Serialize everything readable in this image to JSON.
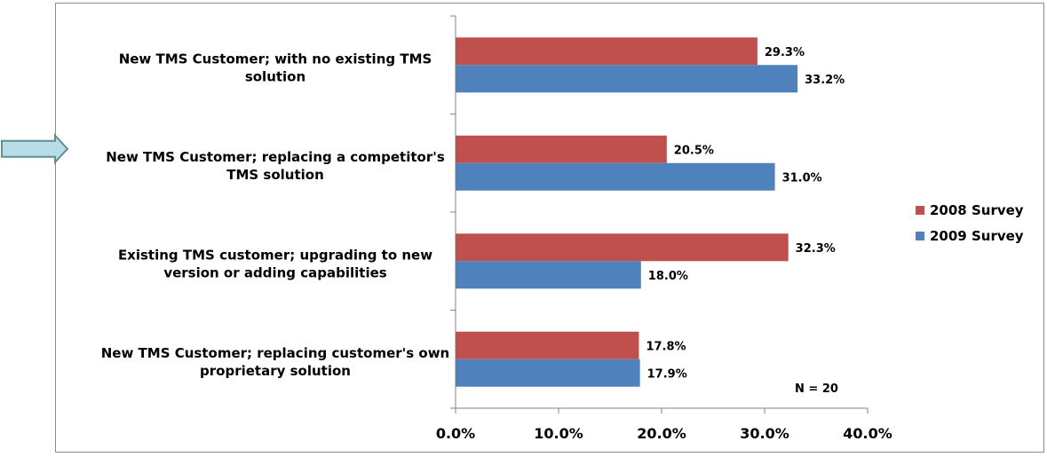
{
  "chart_data": {
    "type": "bar",
    "orientation": "horizontal",
    "categories": [
      [
        "New TMS Customer; with no existing TMS",
        "solution"
      ],
      [
        "New TMS Customer; replacing a competitor's",
        "TMS solution"
      ],
      [
        "Existing TMS customer; upgrading to new",
        "version or adding capabilities"
      ],
      [
        "New TMS Customer; replacing customer's own",
        "proprietary solution"
      ]
    ],
    "series": [
      {
        "name": "2008 Survey",
        "color": "#c0504d",
        "values": [
          29.3,
          20.5,
          32.3,
          17.8
        ]
      },
      {
        "name": "2009 Survey",
        "color": "#4f81bd",
        "values": [
          33.2,
          31.0,
          18.0,
          17.9
        ]
      }
    ],
    "value_labels": {
      "2008 Survey": [
        "29.3%",
        "20.5%",
        "32.3%",
        "17.8%"
      ],
      "2009 Survey": [
        "33.2%",
        "31.0%",
        "18.0%",
        "17.9%"
      ]
    },
    "xlim": [
      0,
      40
    ],
    "xticks": [
      "0.0%",
      "10.0%",
      "20.0%",
      "30.0%",
      "40.0%"
    ],
    "legend_position": "right",
    "grid": false,
    "annotation": "N = 20"
  },
  "highlight_arrow": {
    "category_index": 1,
    "color": "#b7dde8",
    "stroke": "#5f8e8e"
  }
}
